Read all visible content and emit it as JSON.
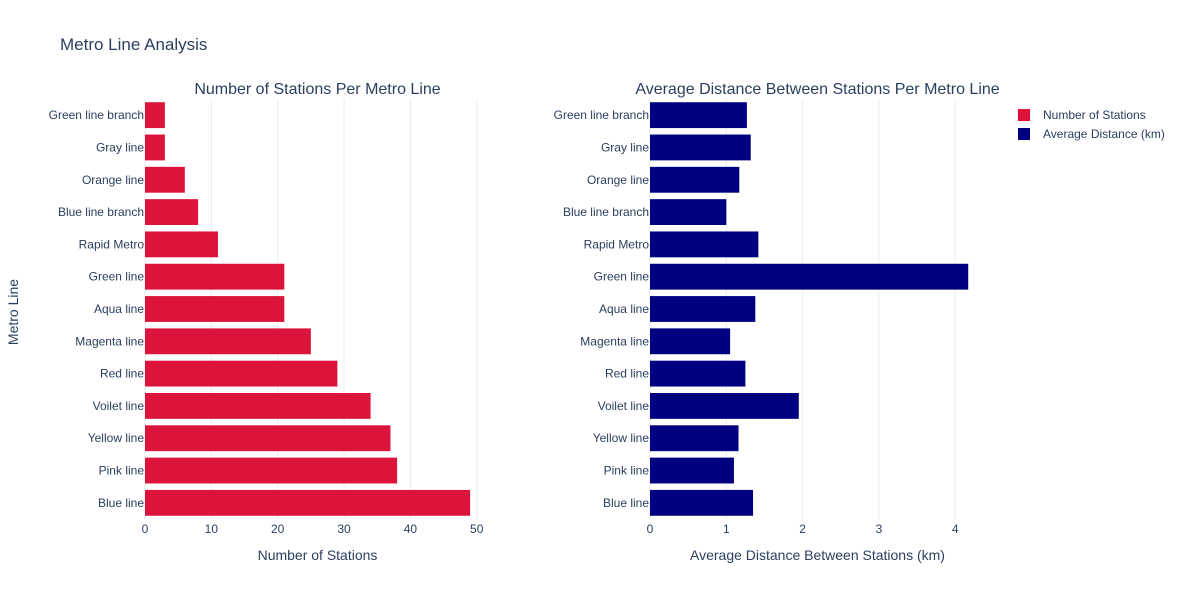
{
  "title": "Metro Line Analysis",
  "y_axis_title": "Metro Line",
  "legend": [
    {
      "name": "Number of Stations",
      "color": "#dc143c"
    },
    {
      "name": "Average Distance (km)",
      "color": "#000080"
    }
  ],
  "chart_data": [
    {
      "type": "bar",
      "orientation": "horizontal",
      "title": "Number of Stations Per Metro Line",
      "xlabel": "Number of Stations",
      "ylabel": "Metro Line",
      "xlim": [
        0,
        52
      ],
      "xticks": [
        0,
        10,
        20,
        30,
        40,
        50
      ],
      "grid": true,
      "color": "#dc143c",
      "categories": [
        "Blue line",
        "Pink line",
        "Yellow line",
        "Voilet line",
        "Red line",
        "Magenta line",
        "Aqua line",
        "Green line",
        "Rapid Metro",
        "Blue line branch",
        "Orange line",
        "Gray line",
        "Green line branch"
      ],
      "series": [
        {
          "name": "Number of Stations",
          "values": [
            49,
            38,
            37,
            34,
            29,
            25,
            21,
            21,
            11,
            8,
            6,
            3,
            3
          ]
        }
      ]
    },
    {
      "type": "bar",
      "orientation": "horizontal",
      "title": "Average Distance Between Stations Per Metro Line",
      "xlabel": "Average Distance Between Stations (km)",
      "xlim": [
        0,
        4.39
      ],
      "xticks": [
        0,
        1,
        2,
        3,
        4
      ],
      "grid": true,
      "color": "#000080",
      "categories": [
        "Blue line",
        "Pink line",
        "Yellow line",
        "Voilet line",
        "Red line",
        "Magenta line",
        "Aqua line",
        "Green line",
        "Rapid Metro",
        "Blue line branch",
        "Orange line",
        "Gray line",
        "Green line branch"
      ],
      "series": [
        {
          "name": "Average Distance (km)",
          "values": [
            1.35,
            1.1,
            1.16,
            1.95,
            1.25,
            1.05,
            1.38,
            4.17,
            1.42,
            1.0,
            1.17,
            1.32,
            1.27
          ]
        }
      ]
    }
  ]
}
